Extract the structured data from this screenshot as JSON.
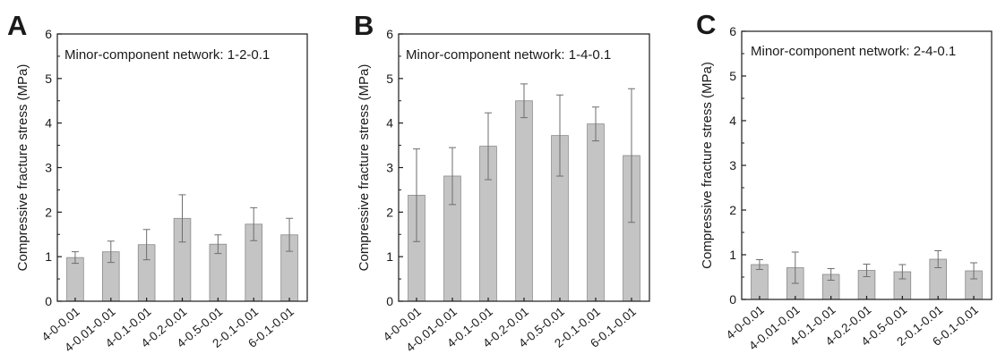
{
  "figure": {
    "colors": {
      "bar": "#c4c4c4",
      "bar_stroke": "#8a8a8a",
      "error_bar": "#6e6e6e",
      "axis": "#1a1a1a"
    }
  },
  "chart_data": [
    {
      "type": "bar",
      "panel": "A",
      "annotation": "Minor-component network: 1-2-0.1",
      "ylabel": "Compressive fracture stress (MPa)",
      "xlabel": "",
      "ylim": [
        0,
        6
      ],
      "yticks": [
        "0",
        "1",
        "2",
        "3",
        "4",
        "5",
        "6"
      ],
      "categories": [
        "4-0-0.01",
        "4-0.01-0.01",
        "4-0.1-0.01",
        "4-0.2-0.01",
        "4-0.5-0.01",
        "2-0.1-0.01",
        "6-0.1-0.01"
      ],
      "values": [
        0.98,
        1.11,
        1.27,
        1.86,
        1.28,
        1.73,
        1.49
      ],
      "errors": [
        0.13,
        0.24,
        0.34,
        0.53,
        0.21,
        0.37,
        0.37
      ],
      "grid": false
    },
    {
      "type": "bar",
      "panel": "B",
      "annotation": "Minor-component network: 1-4-0.1",
      "ylabel": "Compressive fracture stress (MPa)",
      "xlabel": "",
      "ylim": [
        0,
        6
      ],
      "yticks": [
        "0",
        "1",
        "2",
        "3",
        "4",
        "5",
        "6"
      ],
      "categories": [
        "4-0-0.01",
        "4-0.01-0.01",
        "4-0.1-0.01",
        "4-0.2-0.01",
        "4-0.5-0.01",
        "2-0.1-0.01",
        "6-0.1-0.01"
      ],
      "values": [
        2.38,
        2.81,
        3.48,
        4.5,
        3.72,
        3.98,
        3.27
      ],
      "errors": [
        1.04,
        0.64,
        0.75,
        0.38,
        0.91,
        0.38,
        1.5
      ],
      "grid": false
    },
    {
      "type": "bar",
      "panel": "C",
      "annotation": "Minor-component network: 2-4-0.1",
      "ylabel": "Compressive fracture stress (MPa)",
      "xlabel": "",
      "ylim": [
        0,
        6
      ],
      "yticks": [
        "0",
        "1",
        "2",
        "3",
        "4",
        "5",
        "6"
      ],
      "categories": [
        "4-0-0.01",
        "4-0.01-0.01",
        "4-0.1-0.01",
        "4-0.2-0.01",
        "4-0.5-0.01",
        "2-0.1-0.01",
        "6-0.1-0.01"
      ],
      "values": [
        0.78,
        0.71,
        0.56,
        0.65,
        0.62,
        0.9,
        0.64
      ],
      "errors": [
        0.11,
        0.35,
        0.13,
        0.14,
        0.16,
        0.19,
        0.18
      ],
      "grid": false
    }
  ]
}
